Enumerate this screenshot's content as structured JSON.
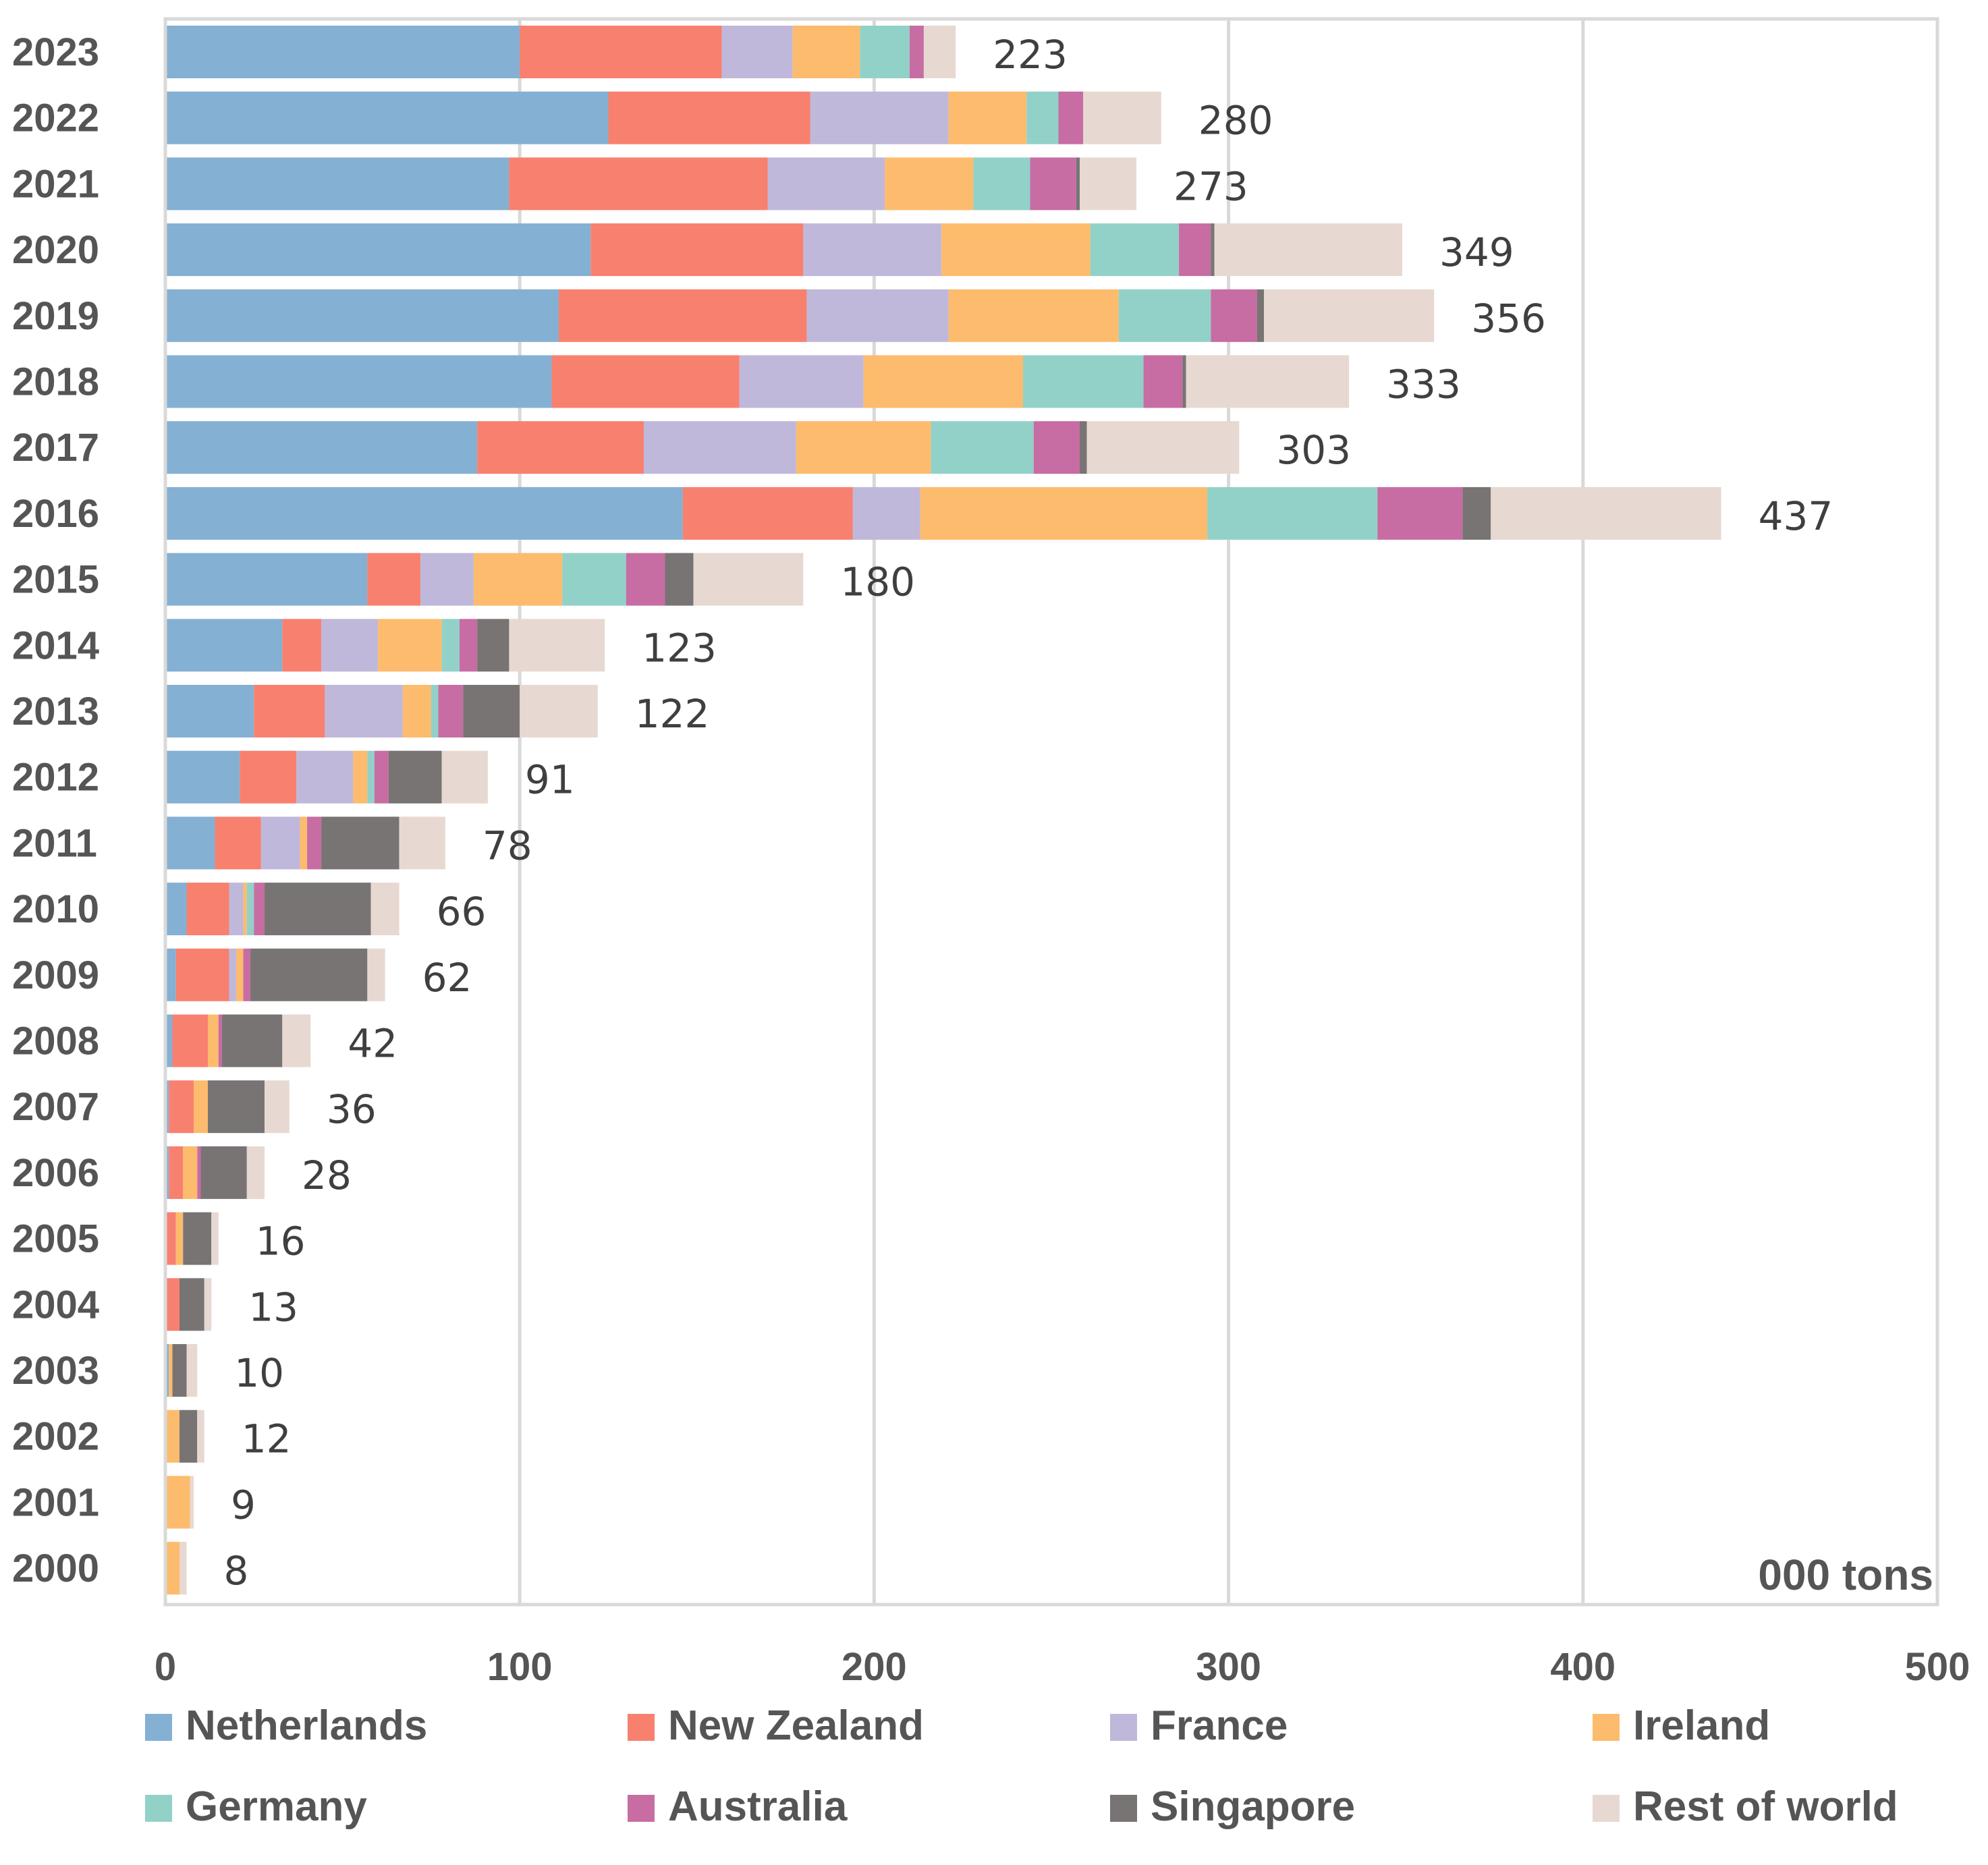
{
  "chart_data": {
    "type": "bar",
    "orientation": "horizontal",
    "stacked": true,
    "unit_label": "000 tons",
    "xlim": [
      0,
      500
    ],
    "x_ticks": [
      0,
      100,
      200,
      300,
      400,
      500
    ],
    "grid": true,
    "legend_position": "bottom",
    "categories": [
      "2023",
      "2022",
      "2021",
      "2020",
      "2019",
      "2018",
      "2017",
      "2016",
      "2015",
      "2014",
      "2013",
      "2012",
      "2011",
      "2010",
      "2009",
      "2008",
      "2007",
      "2006",
      "2005",
      "2004",
      "2003",
      "2002",
      "2001",
      "2000"
    ],
    "totals": [
      223,
      280,
      273,
      349,
      356,
      333,
      303,
      437,
      180,
      123,
      122,
      91,
      78,
      66,
      62,
      42,
      36,
      28,
      16,
      13,
      10,
      12,
      9,
      8
    ],
    "series": [
      {
        "name": "Netherlands",
        "color": "#84b0d3",
        "values": [
          100,
          125,
          97,
          120,
          111,
          109,
          88,
          146,
          57,
          33,
          25,
          21,
          14,
          6,
          3,
          2,
          1,
          1,
          0,
          0,
          1,
          0,
          0,
          0
        ]
      },
      {
        "name": "New Zealand",
        "color": "#f8806f",
        "values": [
          57,
          57,
          73,
          60,
          70,
          53,
          47,
          48,
          15,
          11,
          20,
          16,
          13,
          12,
          15,
          10,
          7,
          4,
          3,
          4,
          0,
          0,
          0,
          0
        ]
      },
      {
        "name": "France",
        "color": "#bfb8da",
        "values": [
          20,
          39,
          33,
          39,
          40,
          35,
          43,
          19,
          15,
          16,
          22,
          16,
          11,
          4,
          2,
          0,
          0,
          0,
          0,
          0,
          0,
          0,
          0,
          0
        ]
      },
      {
        "name": "Ireland",
        "color": "#fdbb6d",
        "values": [
          19,
          22,
          25,
          42,
          48,
          45,
          38,
          81,
          25,
          18,
          8,
          4,
          2,
          1,
          2,
          3,
          4,
          4,
          2,
          0,
          1,
          4,
          7,
          4
        ]
      },
      {
        "name": "Germany",
        "color": "#92d1c8",
        "values": [
          14,
          9,
          16,
          25,
          26,
          34,
          29,
          48,
          18,
          5,
          2,
          2,
          0,
          2,
          0,
          0,
          0,
          0,
          0,
          0,
          0,
          0,
          0,
          0
        ]
      },
      {
        "name": "Australia",
        "color": "#c76da3",
        "values": [
          4,
          7,
          13,
          9,
          13,
          11,
          13,
          24,
          11,
          5,
          7,
          4,
          4,
          3,
          2,
          1,
          0,
          1,
          0,
          0,
          0,
          0,
          0,
          0
        ]
      },
      {
        "name": "Singapore",
        "color": "#787474",
        "values": [
          0,
          0,
          1,
          1,
          2,
          1,
          2,
          8,
          8,
          9,
          16,
          15,
          22,
          30,
          33,
          17,
          16,
          13,
          8,
          7,
          4,
          5,
          0,
          0
        ]
      },
      {
        "name": "Rest of world",
        "color": "#e7d9d1",
        "values": [
          9,
          22,
          16,
          53,
          48,
          46,
          43,
          65,
          31,
          27,
          22,
          13,
          13,
          8,
          5,
          8,
          7,
          5,
          2,
          2,
          3,
          2,
          1,
          2
        ]
      }
    ]
  }
}
